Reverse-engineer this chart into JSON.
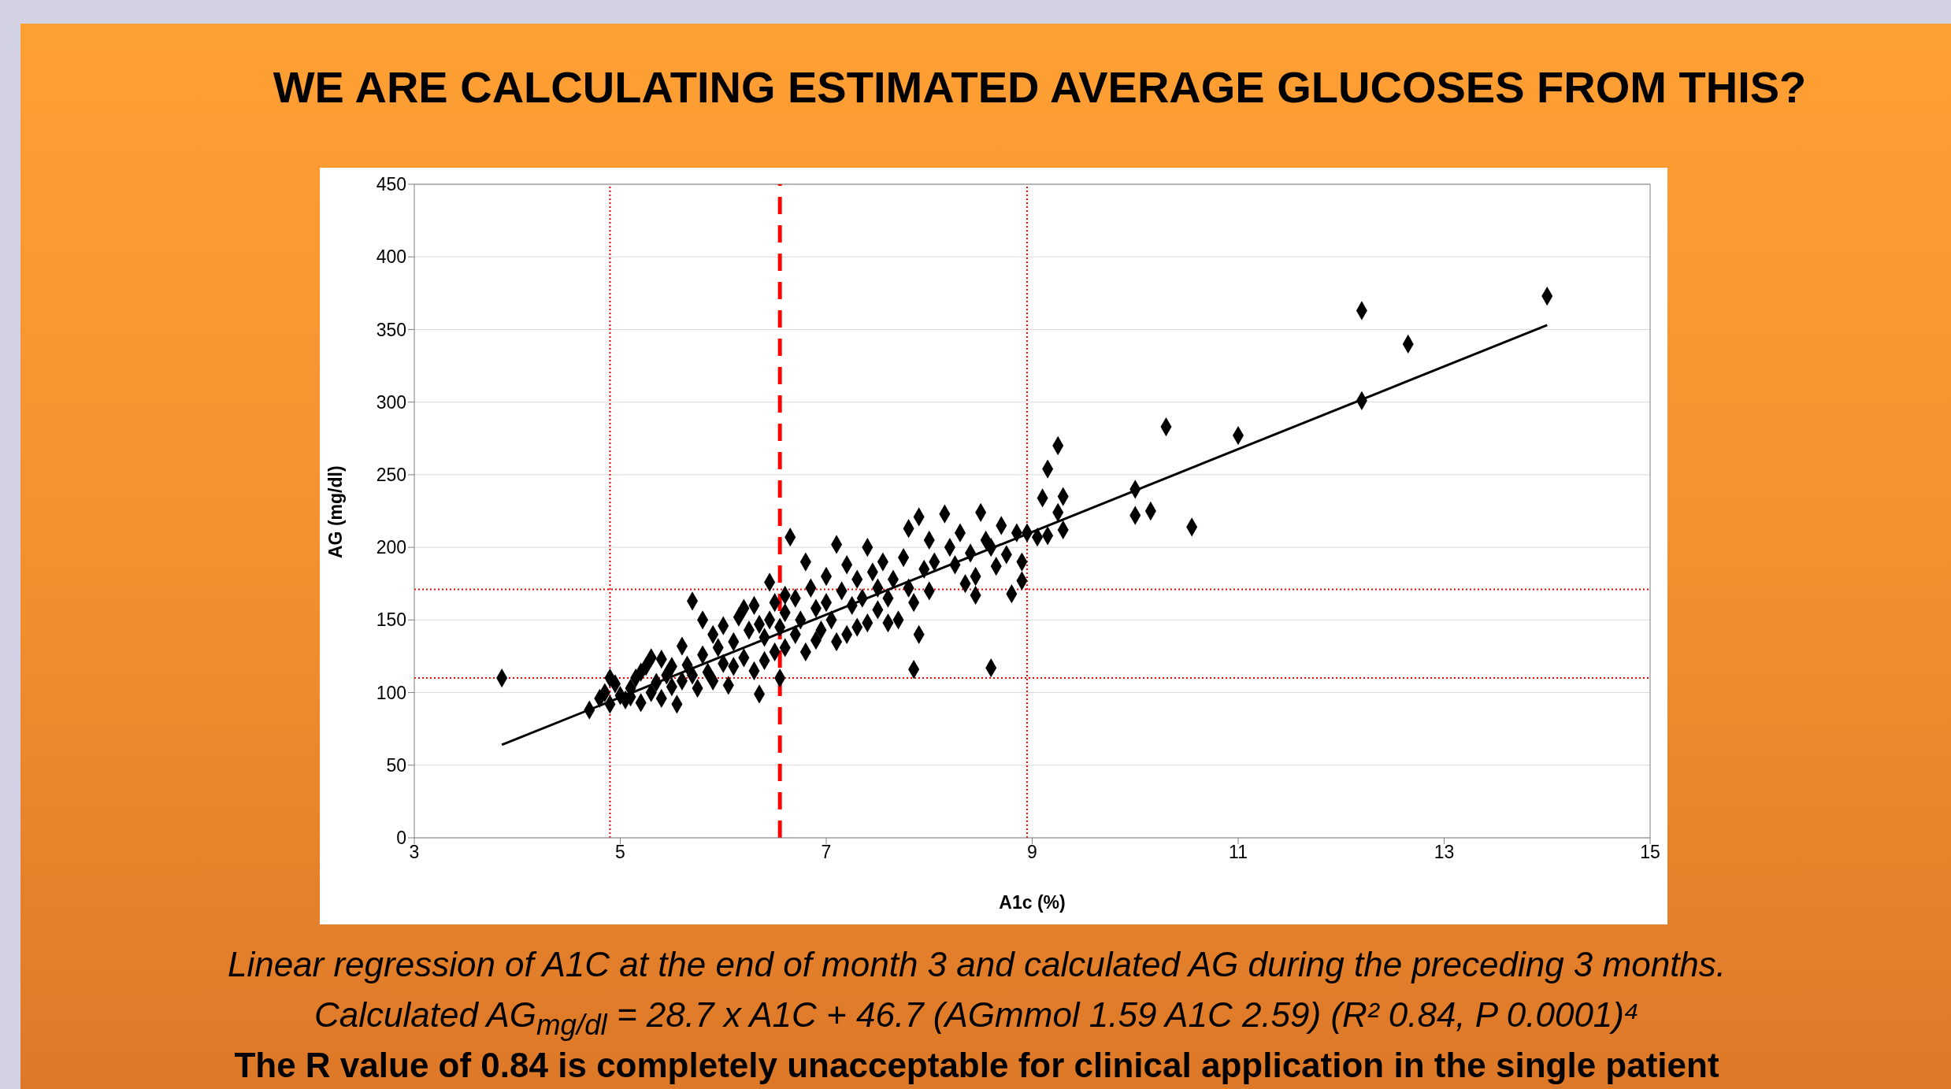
{
  "chart_data": {
    "type": "scatter",
    "title": "WE ARE CALCULATING ESTIMATED AVERAGE GLUCOSES FROM THIS?",
    "xlabel": "A1c (%)",
    "ylabel": "AG (mg/dl)",
    "xlim": [
      3,
      15
    ],
    "xticks": [
      3,
      5,
      7,
      9,
      11,
      13,
      15
    ],
    "ylim": [
      0,
      450
    ],
    "yticks": [
      0,
      50,
      100,
      150,
      200,
      250,
      300,
      350,
      400,
      450
    ],
    "grid": "y",
    "series": [
      {
        "color": "#000000",
        "marker": "diamond",
        "x": [
          3.85,
          4.7,
          4.8,
          4.85,
          4.9,
          4.95,
          5.0,
          4.9,
          5.05,
          5.1,
          5.15,
          5.2,
          5.25,
          5.3,
          5.35,
          5.4,
          5.4,
          5.45,
          5.5,
          5.5,
          5.55,
          5.3,
          5.2,
          5.1,
          5.6,
          5.6,
          5.65,
          5.7,
          5.75,
          5.8,
          5.85,
          5.9,
          5.9,
          5.95,
          6.0,
          6.0,
          5.7,
          5.8,
          6.05,
          6.1,
          6.15,
          6.2,
          6.25,
          6.3,
          6.3,
          6.35,
          6.4,
          6.45,
          6.45,
          6.5,
          6.2,
          6.4,
          6.1,
          6.35,
          6.5,
          6.55,
          6.6,
          6.6,
          6.65,
          6.7,
          6.7,
          6.75,
          6.8,
          6.85,
          6.9,
          6.95,
          7.0,
          7.0,
          6.8,
          6.9,
          6.55,
          6.6,
          7.05,
          7.1,
          7.15,
          7.2,
          7.25,
          7.3,
          7.3,
          7.35,
          7.4,
          7.45,
          7.5,
          7.5,
          7.1,
          7.2,
          7.4,
          7.55,
          7.6,
          7.65,
          7.7,
          7.75,
          7.8,
          7.8,
          7.85,
          7.9,
          7.95,
          8.0,
          7.6,
          7.85,
          7.9,
          8.0,
          8.05,
          8.15,
          8.2,
          8.25,
          8.3,
          8.35,
          8.4,
          8.45,
          8.5,
          8.55,
          8.6,
          8.6,
          8.65,
          8.7,
          8.75,
          8.8,
          8.85,
          8.9,
          8.9,
          8.45,
          8.95,
          9.05,
          9.1,
          9.15,
          9.15,
          9.25,
          9.25,
          9.3,
          9.3,
          10.0,
          10.0,
          10.15,
          10.3,
          10.55,
          11.0,
          12.2,
          12.2,
          12.65,
          14.0
        ],
        "values": [
          110,
          88,
          96,
          100,
          92,
          106,
          98,
          110,
          95,
          103,
          110,
          93,
          118,
          100,
          107,
          96,
          123,
          112,
          104,
          118,
          92,
          124,
          114,
          97,
          108,
          132,
          119,
          163,
          103,
          126,
          114,
          140,
          108,
          131,
          120,
          146,
          112,
          150,
          105,
          135,
          152,
          124,
          143,
          160,
          115,
          99,
          138,
          150,
          176,
          128,
          158,
          122,
          118,
          147,
          162,
          145,
          155,
          131,
          207,
          165,
          140,
          150,
          128,
          172,
          158,
          143,
          180,
          162,
          190,
          136,
          110,
          167,
          150,
          202,
          170,
          188,
          160,
          145,
          178,
          165,
          200,
          183,
          157,
          172,
          135,
          140,
          148,
          190,
          165,
          178,
          150,
          193,
          213,
          172,
          162,
          221,
          185,
          205,
          148,
          116,
          140,
          170,
          190,
          223,
          200,
          188,
          210,
          175,
          196,
          167,
          224,
          205,
          117,
          200,
          187,
          215,
          195,
          168,
          210,
          177,
          190,
          180,
          210,
          207,
          234,
          254,
          208,
          270,
          224,
          235,
          212,
          240,
          222,
          225,
          283,
          214,
          277,
          363,
          301,
          340,
          373
        ]
      },
      {
        "type": "line",
        "color": "#000000",
        "x": [
          3.85,
          14.0
        ],
        "values": [
          64,
          353
        ]
      }
    ],
    "ref_lines": [
      {
        "axis": "x",
        "value": 4.9,
        "color": "#ff0000",
        "line_style": "dotted"
      },
      {
        "axis": "x",
        "value": 6.55,
        "color": "#ff0000",
        "line_style": "dashed"
      },
      {
        "axis": "x",
        "value": 8.95,
        "color": "#ff0000",
        "line_style": "dotted"
      },
      {
        "axis": "y",
        "value": 110,
        "color": "#ff0000",
        "line_style": "dotted"
      },
      {
        "axis": "y",
        "value": 171,
        "color": "#ff0000",
        "line_style": "dotted"
      }
    ],
    "annotations": [
      "Linear regression of A1C at the end of month 3 and calculated AG during the preceding 3 months.",
      "Calculated AG$_{mg/dl}$ = 28.7 x A1C + 46.7 (AGmmol  1.59  A1C  2.59) (R² 0.84, P  0.0001)⁴",
      "The R value of 0.84 is completely unacceptable for clinical application in the single patient"
    ]
  }
}
